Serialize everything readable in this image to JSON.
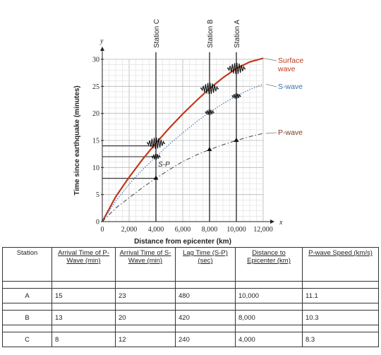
{
  "chart_data": {
    "type": "line",
    "x_axis_letter": "x",
    "y_axis_letter": "y",
    "xlabel": "Distance from epicenter (km)",
    "ylabel": "Time since earthquake (minutes)",
    "xlim": [
      0,
      12000
    ],
    "ylim": [
      0,
      30
    ],
    "x_ticks": [
      "0",
      "2,000",
      "4,000",
      "6,000",
      "8,000",
      "10,000",
      "12,000"
    ],
    "y_ticks": [
      "0",
      "5",
      "10",
      "15",
      "20",
      "25",
      "30"
    ],
    "grid": true,
    "series": [
      {
        "name": "Surface wave",
        "color": "#c0391b",
        "style": "solid",
        "x": [
          0,
          1000,
          2000,
          3000,
          4000,
          5000,
          6000,
          7000,
          8000,
          9000,
          10000,
          11000,
          12000
        ],
        "y": [
          0,
          4.6,
          8.2,
          11.5,
          14.5,
          17.3,
          19.9,
          22.3,
          24.6,
          26.6,
          28.3,
          29.5,
          30.2
        ]
      },
      {
        "name": "S-wave",
        "color": "#3a6fb0",
        "style": "dotted",
        "x": [
          0,
          1000,
          2000,
          3000,
          4000,
          5000,
          6000,
          7000,
          8000,
          9000,
          10000,
          11000,
          12000
        ],
        "y": [
          0,
          3.8,
          6.9,
          9.6,
          12,
          14.3,
          16.4,
          18.4,
          20.2,
          21.8,
          23.2,
          24.4,
          25.4
        ]
      },
      {
        "name": "P-wave",
        "color": "#444444",
        "style": "dash-dot",
        "x": [
          0,
          1000,
          2000,
          3000,
          4000,
          5000,
          6000,
          7000,
          8000,
          9000,
          10000,
          11000,
          12000
        ],
        "y": [
          0,
          2.5,
          4.4,
          6.3,
          8,
          9.6,
          11.1,
          12.3,
          13.3,
          14.2,
          15,
          15.7,
          16.3
        ]
      }
    ],
    "legend_labels": {
      "surface": [
        "Surface",
        "wave"
      ],
      "s": "S-wave",
      "p": "P-wave"
    },
    "stations": [
      {
        "label": "Station C",
        "x": 4000
      },
      {
        "label": "Station B",
        "x": 8000
      },
      {
        "label": "Station A",
        "x": 10000
      }
    ],
    "sp_label": "S-P",
    "reference_lines_y": [
      8,
      12,
      14
    ],
    "seismogram_marks": [
      {
        "x": 4000,
        "y": 8,
        "kind": "triangle"
      },
      {
        "x": 4000,
        "y": 12,
        "kind": "small"
      },
      {
        "x": 4000,
        "y": 14.5,
        "kind": "large"
      },
      {
        "x": 8000,
        "y": 13.3,
        "kind": "triangle"
      },
      {
        "x": 8000,
        "y": 20.2,
        "kind": "small"
      },
      {
        "x": 8000,
        "y": 24.6,
        "kind": "large"
      },
      {
        "x": 10000,
        "y": 15,
        "kind": "triangle"
      },
      {
        "x": 10000,
        "y": 23.2,
        "kind": "small"
      },
      {
        "x": 10000,
        "y": 28.3,
        "kind": "large"
      }
    ]
  },
  "table": {
    "headers": [
      "Station",
      "Arrival Time of P-Wave (min)",
      "Arrival Time of S-Wave (min)",
      "Lag Time (S-P) (sec)",
      "Distance to Epicenter (km)",
      "P-wave Speed (km/s)"
    ],
    "rows": [
      [
        "A",
        "15",
        "23",
        "480",
        "10,000",
        "11.1"
      ],
      [
        "B",
        "13",
        "20",
        "420",
        "8,000",
        "10.3"
      ],
      [
        "C",
        "8",
        "12",
        "240",
        "4,000",
        "8.3"
      ]
    ]
  }
}
